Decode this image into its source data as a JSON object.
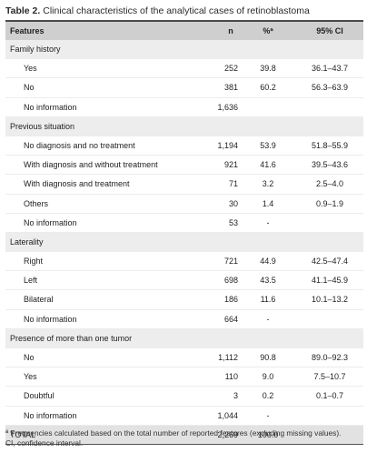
{
  "caption": {
    "label": "Table 2.",
    "text": "Clinical characteristics of the analytical cases of retinoblastoma"
  },
  "columns": {
    "feature": "Features",
    "n": "n",
    "pct": "%ª",
    "ci": "95% CI"
  },
  "rows": [
    {
      "type": "section",
      "feature": "Family history",
      "n": "",
      "pct": "",
      "ci": ""
    },
    {
      "type": "item",
      "feature": "Yes",
      "n": "252",
      "pct": "39.8",
      "ci": "36.1–43.7"
    },
    {
      "type": "item",
      "feature": "No",
      "n": "381",
      "pct": "60.2",
      "ci": "56.3–63.9"
    },
    {
      "type": "item",
      "feature": "No information",
      "n": "1,636",
      "pct": "",
      "ci": ""
    },
    {
      "type": "section",
      "feature": "Previous situation",
      "n": "",
      "pct": "",
      "ci": ""
    },
    {
      "type": "item",
      "feature": "No diagnosis and no treatment",
      "n": "1,194",
      "pct": "53.9",
      "ci": "51.8–55.9"
    },
    {
      "type": "item",
      "feature": "With diagnosis and without treatment",
      "n": "921",
      "pct": "41.6",
      "ci": "39.5–43.6"
    },
    {
      "type": "item",
      "feature": "With diagnosis and treatment",
      "n": "71",
      "pct": "3.2",
      "ci": "2.5–4.0"
    },
    {
      "type": "item",
      "feature": "Others",
      "n": "30",
      "pct": "1.4",
      "ci": "0.9–1.9"
    },
    {
      "type": "item",
      "feature": "No information",
      "n": "53",
      "pct": "-",
      "ci": ""
    },
    {
      "type": "section",
      "feature": "Laterality",
      "n": "",
      "pct": "",
      "ci": ""
    },
    {
      "type": "item",
      "feature": "Right",
      "n": "721",
      "pct": "44.9",
      "ci": "42.5–47.4"
    },
    {
      "type": "item",
      "feature": "Left",
      "n": "698",
      "pct": "43.5",
      "ci": "41.1–45.9"
    },
    {
      "type": "item",
      "feature": "Bilateral",
      "n": "186",
      "pct": "11.6",
      "ci": "10.1–13.2"
    },
    {
      "type": "item",
      "feature": "No information",
      "n": "664",
      "pct": "-",
      "ci": ""
    },
    {
      "type": "section",
      "feature": "Presence of more than one tumor",
      "n": "",
      "pct": "",
      "ci": ""
    },
    {
      "type": "item",
      "feature": "No",
      "n": "1,112",
      "pct": "90.8",
      "ci": "89.0–92.3"
    },
    {
      "type": "item",
      "feature": "Yes",
      "n": "110",
      "pct": "9.0",
      "ci": "7.5–10.7"
    },
    {
      "type": "item",
      "feature": "Doubtful",
      "n": "3",
      "pct": "0.2",
      "ci": "0.1–0.7"
    },
    {
      "type": "item",
      "feature": "No information",
      "n": "1,044",
      "pct": "-",
      "ci": ""
    },
    {
      "type": "total",
      "feature": "TOTAL",
      "n": "2,269",
      "pct": "100.0",
      "ci": ""
    }
  ],
  "footnotes": {
    "a": "ª Frequencies calculated based on the total number of reported features (excluding missing values).",
    "ci": "CI, confidence interval."
  }
}
